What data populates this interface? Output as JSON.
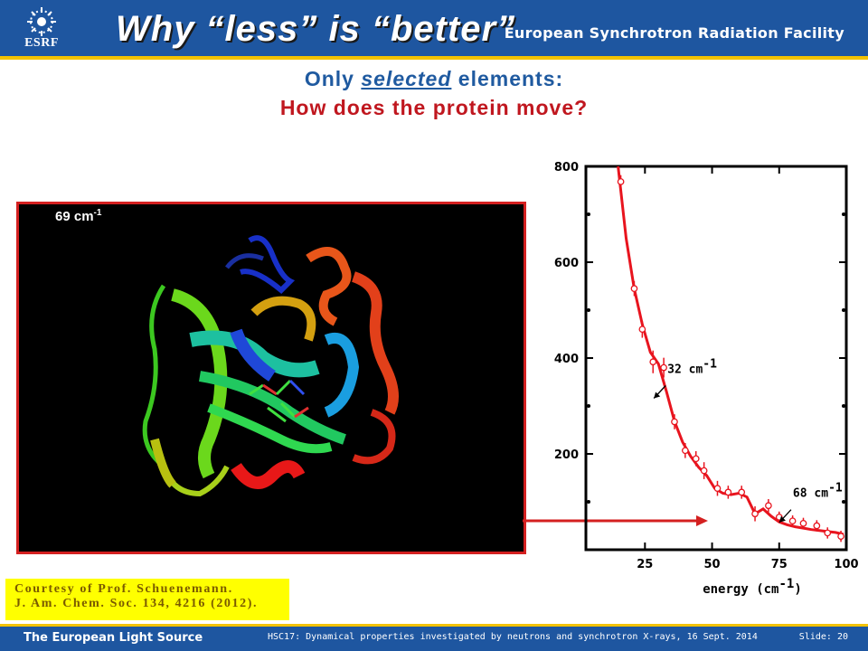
{
  "header": {
    "title": "Why “less” is “better”",
    "logo_text": "ESRF",
    "org_name": "European Synchrotron Radiation Facility"
  },
  "subtitle": {
    "line1_prefix": "Only",
    "line1_emphasis": "selected",
    "line1_suffix": "elements:",
    "line2": "How does the protein move?"
  },
  "protein_panel": {
    "wave_value": "69 cm",
    "wave_exp": "-1"
  },
  "courtesy": {
    "line1": "Courtesy of Prof. Schuenemann.",
    "line2": "J. Am. Chem. Soc. 134, 4216 (2012)."
  },
  "footer": {
    "left": "The European Light Source",
    "center": "HSC17: Dynamical properties investigated by neutrons and synchrotron X-rays, 16 Sept. 2014",
    "slide_label": "Slide:",
    "slide_number": "20"
  },
  "colors": {
    "brand_blue": "#1e56a0",
    "accent_yellow": "#f2c200",
    "highlight_red": "#d42020"
  },
  "chart_data": {
    "type": "line",
    "xlabel": "energy (cm",
    "xlabel_exp": "-1",
    "xlabel_close": ")",
    "ylabel": "",
    "xlim": [
      3,
      100
    ],
    "ylim": [
      0,
      800
    ],
    "x_ticks": [
      25,
      50,
      75,
      100
    ],
    "y_ticks": [
      200,
      400,
      600,
      800
    ],
    "grid": false,
    "series": [
      {
        "x": [
          15,
          18,
          21,
          24,
          27,
          30,
          33,
          36,
          39,
          42,
          45,
          48,
          51,
          54,
          57,
          60,
          63,
          66,
          69,
          72,
          75,
          78,
          81,
          84,
          87,
          90,
          93,
          96,
          99
        ],
        "y": [
          800,
          650,
          545,
          470,
          412,
          388,
          330,
          268,
          225,
          195,
          172,
          155,
          128,
          118,
          115,
          118,
          110,
          75,
          85,
          70,
          58,
          52,
          48,
          45,
          42,
          40,
          38,
          36,
          32
        ],
        "color": "#e8141e"
      }
    ],
    "markers": {
      "x": [
        16,
        21,
        24,
        28,
        32,
        36,
        40,
        44,
        47,
        52,
        56,
        61,
        66,
        71,
        75,
        80,
        84,
        89,
        93,
        98
      ],
      "y": [
        768,
        545,
        460,
        392,
        380,
        267,
        207,
        190,
        165,
        128,
        120,
        120,
        75,
        92,
        68,
        60,
        55,
        50,
        35,
        28
      ],
      "err": [
        8,
        10,
        12,
        18,
        15,
        10,
        10,
        10,
        12,
        10,
        8,
        8,
        10,
        8,
        6,
        6,
        6,
        6,
        6,
        6
      ]
    },
    "annotations": [
      {
        "text": "32 cm",
        "exp": "-1",
        "x": 30,
        "y": 350
      },
      {
        "text": "68 cm",
        "exp": "-1",
        "x": 70,
        "y": 110
      }
    ]
  }
}
